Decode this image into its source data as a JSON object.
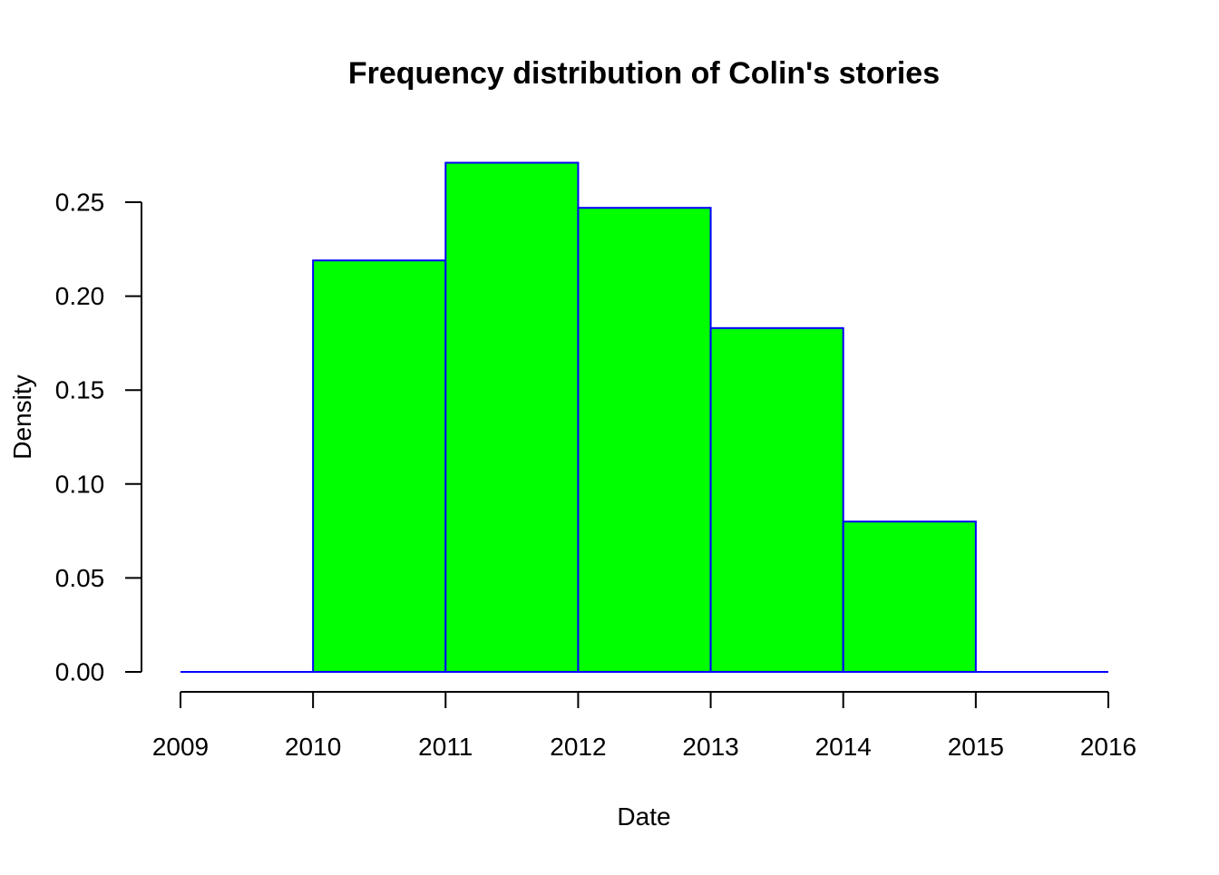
{
  "chart_data": {
    "type": "bar",
    "title": "Frequency distribution of Colin's stories",
    "xlabel": "Date",
    "ylabel": "Density",
    "bins": [
      {
        "start": 2009,
        "end": 2010,
        "value": 0.0
      },
      {
        "start": 2010,
        "end": 2011,
        "value": 0.219
      },
      {
        "start": 2011,
        "end": 2012,
        "value": 0.271
      },
      {
        "start": 2012,
        "end": 2013,
        "value": 0.247
      },
      {
        "start": 2013,
        "end": 2014,
        "value": 0.183
      },
      {
        "start": 2014,
        "end": 2015,
        "value": 0.08
      },
      {
        "start": 2015,
        "end": 2016,
        "value": 0.0
      }
    ],
    "x_ticks": [
      2009,
      2010,
      2011,
      2012,
      2013,
      2014,
      2015,
      2016
    ],
    "x_tick_labels": [
      "2009",
      "2010",
      "2011",
      "2012",
      "2013",
      "2014",
      "2015",
      "2016"
    ],
    "y_ticks": [
      0.0,
      0.05,
      0.1,
      0.15,
      0.2,
      0.25
    ],
    "y_tick_labels": [
      "0.00",
      "0.05",
      "0.10",
      "0.15",
      "0.20",
      "0.25"
    ],
    "xlim": [
      2009,
      2016
    ],
    "ylim": [
      0,
      0.25
    ],
    "grid": false,
    "bar_fill_color": "#00ff00",
    "bar_edge_color": "#0000ff",
    "axis_color": "#000000"
  }
}
